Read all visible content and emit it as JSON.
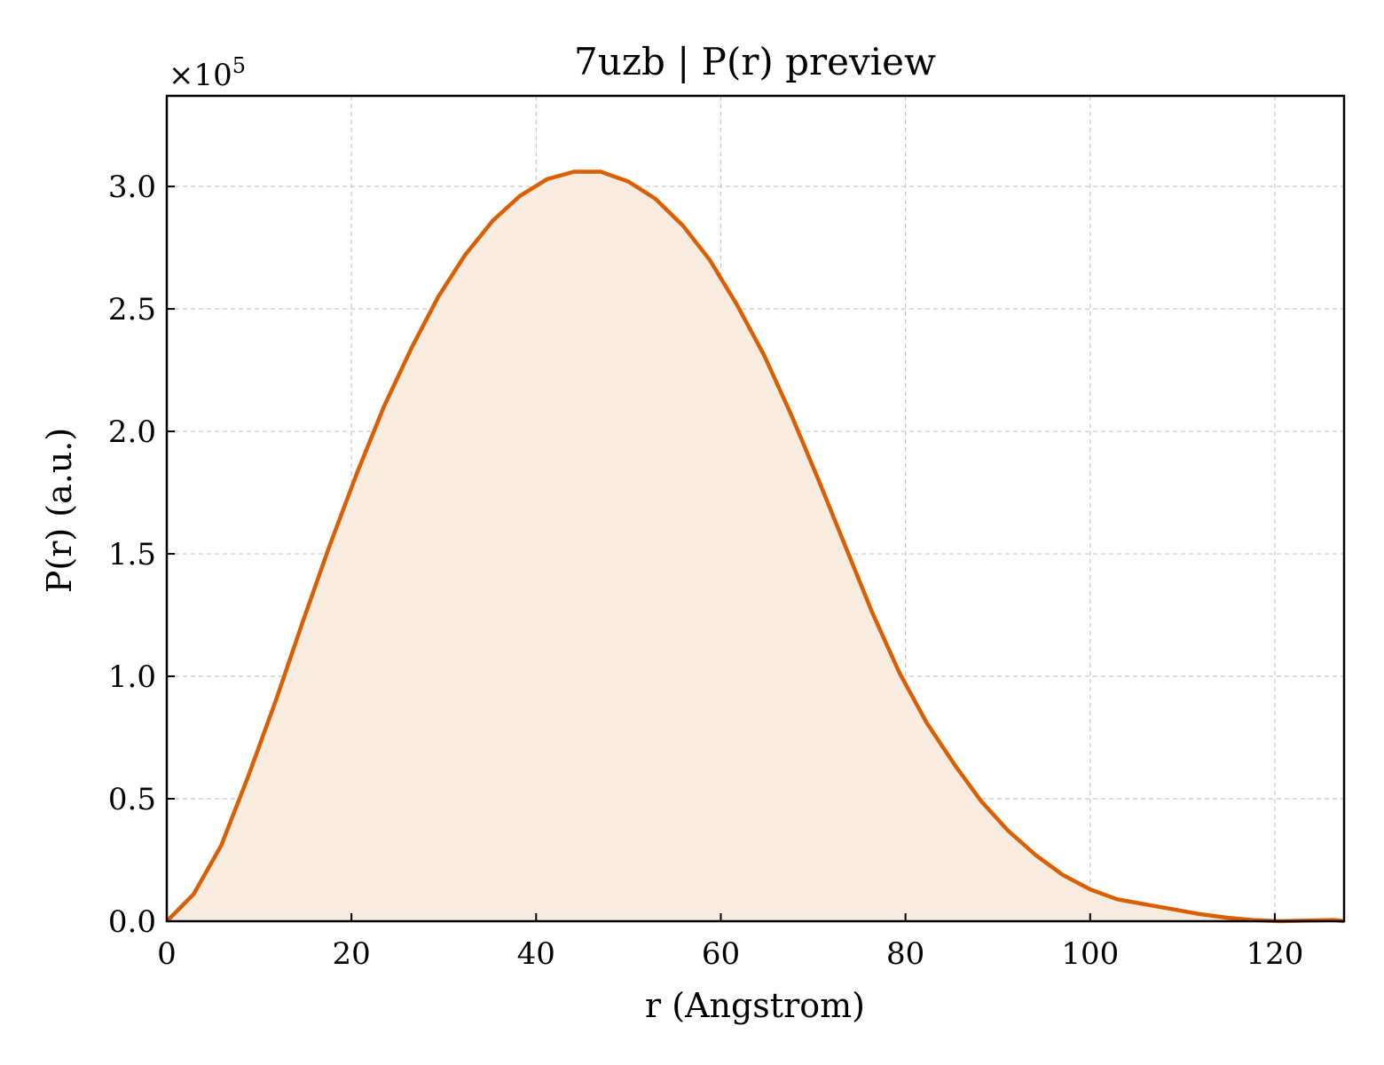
{
  "chart_data": {
    "type": "area",
    "title": "7uzb | P(r) preview",
    "xlabel": "r (Angstrom)",
    "ylabel": "P(r) (a.u.)",
    "y_multiplier_label": "×10",
    "y_multiplier_exponent": "5",
    "xlim": [
      0,
      127.5
    ],
    "ylim": [
      0,
      3.37
    ],
    "x_ticks": [
      0,
      20,
      40,
      60,
      80,
      100,
      120
    ],
    "x_tick_labels": [
      "0",
      "20",
      "40",
      "60",
      "80",
      "100",
      "120"
    ],
    "y_ticks": [
      0,
      0.5,
      1.0,
      1.5,
      2.0,
      2.5,
      3.0
    ],
    "y_tick_labels": [
      "0.0",
      "0.5",
      "1.0",
      "1.5",
      "2.0",
      "2.5",
      "3.0"
    ],
    "grid": true,
    "line_color": "#d95f02",
    "fill_color": "#f8ebe0",
    "series": [
      {
        "x": [
          0,
          2.9,
          5.9,
          8.8,
          11.8,
          14.7,
          17.6,
          20.6,
          23.5,
          26.5,
          29.4,
          32.3,
          35.3,
          38.2,
          41.2,
          44.1,
          47.0,
          50.0,
          52.9,
          55.9,
          58.8,
          61.7,
          64.7,
          67.6,
          70.6,
          73.5,
          76.4,
          79.4,
          82.3,
          85.3,
          88.2,
          91.1,
          94.1,
          97.0,
          100.0,
          102.9,
          105.8,
          108.8,
          111.7,
          114.7,
          117.6,
          120.5,
          123.5,
          126.4,
          127.5
        ],
        "values": [
          0.0,
          0.11,
          0.31,
          0.59,
          0.9,
          1.22,
          1.53,
          1.83,
          2.1,
          2.34,
          2.55,
          2.72,
          2.86,
          2.96,
          3.03,
          3.06,
          3.06,
          3.02,
          2.95,
          2.84,
          2.7,
          2.52,
          2.31,
          2.07,
          1.8,
          1.53,
          1.26,
          1.01,
          0.81,
          0.64,
          0.49,
          0.37,
          0.27,
          0.19,
          0.13,
          0.09,
          0.07,
          0.05,
          0.03,
          0.015,
          0.005,
          0.0,
          0.003,
          0.005,
          0.0
        ]
      }
    ]
  }
}
